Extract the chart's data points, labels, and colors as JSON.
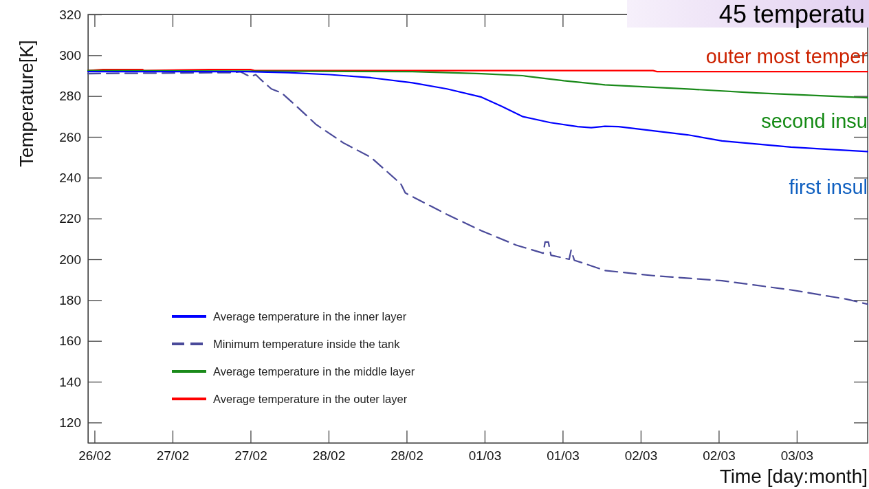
{
  "chart_data": {
    "type": "line",
    "title": "45 temperatu",
    "xlabel": "Time [day:month]",
    "ylabel": "Temperature[K]",
    "xlim": [
      "--02-26T11:00",
      "--03-03T10:54"
    ],
    "ylim": [
      110,
      320
    ],
    "xticks": [
      {
        "value": "--02-26T12:00",
        "label": "26/02"
      },
      {
        "value": "--02-27T00:00",
        "label": "27/02"
      },
      {
        "value": "--02-27T12:00",
        "label": "27/02"
      },
      {
        "value": "--02-28T00:00",
        "label": "28/02"
      },
      {
        "value": "--02-28T12:00",
        "label": "28/02"
      },
      {
        "value": "--03-01T00:00",
        "label": "01/03"
      },
      {
        "value": "--03-01T12:00",
        "label": "01/03"
      },
      {
        "value": "--03-02T00:00",
        "label": "02/03"
      },
      {
        "value": "--03-02T12:00",
        "label": "02/03"
      },
      {
        "value": "--03-03T00:00",
        "label": "03/03"
      }
    ],
    "yticks": [
      120,
      140,
      160,
      180,
      200,
      220,
      240,
      260,
      280,
      300,
      320
    ],
    "grid": false,
    "legend": "bottom left",
    "marker": "none",
    "annotations": [
      "outer most temper",
      "second insu",
      "first insul"
    ],
    "series": [
      {
        "name": "Average temperature in the inner layer",
        "color": "#0000ff",
        "line_style": "solid",
        "x": [
          "--02-26T11:00",
          "--02-27T11:30",
          "--02-27T17:48",
          "--02-28T00:12",
          "--02-28T06:30",
          "--02-28T12:54",
          "--02-28T18:12",
          "--02-28T23:30",
          "--03-01T02:36",
          "--03-01T05:48",
          "--03-01T10:06",
          "--03-01T14:18",
          "--03-01T16:24",
          "--03-01T18:30",
          "--03-01T20:36",
          "--03-02T01:54",
          "--03-02T07:12",
          "--03-02T12:30",
          "--03-02T17:48",
          "--03-02T23:06",
          "--03-03T04:24",
          "--03-03T10:54"
        ],
        "values": [
          292,
          292,
          291.5,
          290.5,
          289,
          286.5,
          283.5,
          279.5,
          275,
          270,
          267,
          265,
          264.5,
          265.2,
          265,
          263,
          261,
          258,
          256.5,
          255,
          254,
          252.8
        ]
      },
      {
        "name": "Minimum temperature inside the tank",
        "color": "#4a4a9a",
        "line_style": "dashed",
        "x": [
          "--02-26T11:00",
          "--02-27T09:24",
          "--02-27T10:24",
          "--02-27T11:18",
          "--02-27T12:00",
          "--02-27T12:48",
          "--02-27T13:36",
          "--02-27T15:12",
          "--02-27T16:48",
          "--02-27T18:54",
          "--02-27T22:06",
          "--02-28T02:18",
          "--02-28T06:30",
          "--02-28T11:06",
          "--02-28T11:48",
          "--02-28T18:12",
          "--02-28T23:30",
          "--03-01T04:48",
          "--03-01T09:00",
          "--03-01T09:18",
          "--03-01T09:48",
          "--03-01T10:12",
          "--03-01T13:00",
          "--03-01T13:18",
          "--03-01T13:48",
          "--03-01T15:18",
          "--03-01T18:30",
          "--03-02T01:54",
          "--03-02T12:30",
          "--03-02T23:06",
          "--03-03T07:36",
          "--03-03T10:54"
        ],
        "values": [
          291,
          291.5,
          292,
          290.5,
          289.5,
          290.5,
          288,
          283.5,
          281.5,
          275.5,
          266,
          257,
          250,
          237,
          232.5,
          222,
          214,
          207,
          203,
          208.5,
          208.5,
          202,
          200,
          204.5,
          199.5,
          198,
          194.5,
          192,
          189.5,
          185,
          180.5,
          178
        ]
      },
      {
        "name": "Average temperature in the middle layer",
        "color": "#1a8a1a",
        "line_style": "solid",
        "x": [
          "--02-26T11:00",
          "--02-28T12:54",
          "--02-28T23:30",
          "--03-01T05:48",
          "--03-01T12:12",
          "--03-01T18:30",
          "--03-02T07:12",
          "--03-02T17:48",
          "--03-03T10:54"
        ],
        "values": [
          292.5,
          292,
          291,
          290,
          287.5,
          285.5,
          283.5,
          281.5,
          279.2
        ]
      },
      {
        "name": "Average temperature in the outer layer",
        "color": "#ff0000",
        "line_style": "solid",
        "x": [
          "--02-26T11:00",
          "--02-26T13:18",
          "--02-26T19:24",
          "--02-26T19:36",
          "--02-27T05:42",
          "--02-27T12:00",
          "--02-27T12:36",
          "--03-02T01:54",
          "--03-02T02:30",
          "--03-03T10:54"
        ],
        "values": [
          292.5,
          293,
          293,
          292.5,
          293,
          293,
          292.5,
          292.5,
          292,
          292
        ]
      }
    ]
  }
}
